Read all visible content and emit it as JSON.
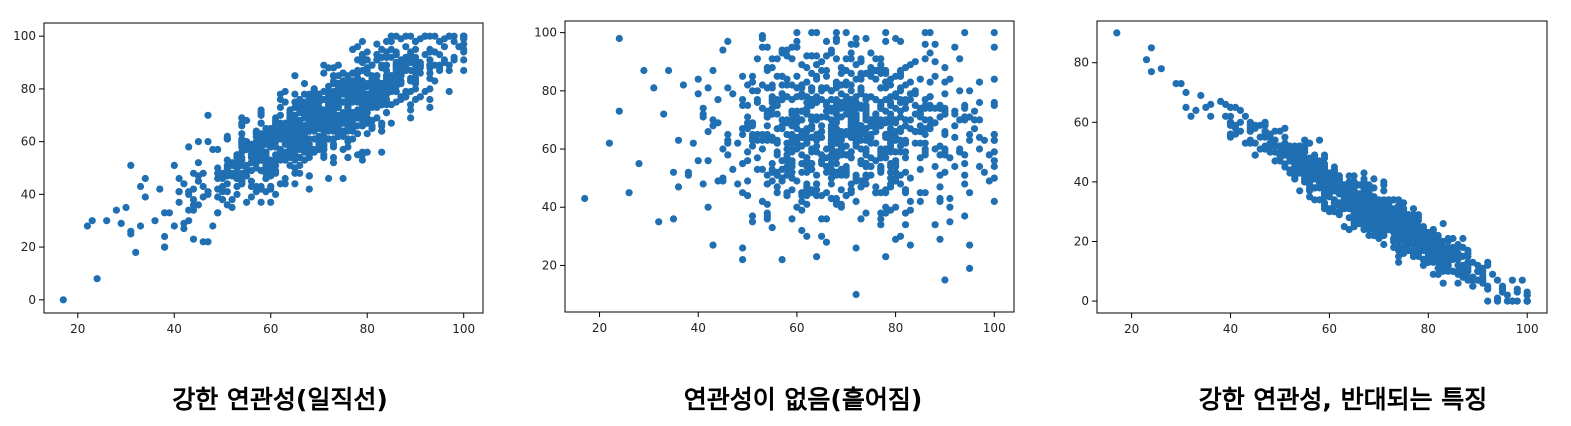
{
  "colors": {
    "marker": "#1f6fb2",
    "axes": "#000000",
    "background": "#ffffff"
  },
  "chart_data": [
    {
      "type": "scatter",
      "caption": "강한 연관성(일직선)",
      "xlim": [
        13,
        104
      ],
      "ylim": [
        -5,
        105
      ],
      "xticks": [
        20,
        40,
        60,
        80,
        100
      ],
      "yticks": [
        0,
        20,
        40,
        60,
        80,
        100
      ],
      "trend": {
        "kind": "linear",
        "slope": 1.0,
        "intercept": -2,
        "noise": 8,
        "n": 1000,
        "x_center": 72,
        "x_spread": 13,
        "x_min": 20,
        "x_max": 100,
        "y_min": 15,
        "y_max": 100
      },
      "points": [
        [
          17,
          0
        ],
        [
          24,
          8
        ],
        [
          22,
          28
        ],
        [
          23,
          30
        ],
        [
          26,
          30
        ],
        [
          28,
          34
        ],
        [
          30,
          35
        ],
        [
          29,
          29
        ],
        [
          31,
          51
        ],
        [
          34,
          46
        ],
        [
          32,
          18
        ],
        [
          31,
          26
        ],
        [
          33,
          28
        ],
        [
          36,
          30
        ],
        [
          38,
          20
        ],
        [
          38,
          24
        ],
        [
          40,
          28
        ],
        [
          44,
          23
        ],
        [
          41,
          46
        ],
        [
          43,
          58
        ],
        [
          45,
          60
        ],
        [
          47,
          70
        ],
        [
          44,
          34
        ]
      ]
    },
    {
      "type": "scatter",
      "caption": "연관성이 없음(흩어짐)",
      "xlim": [
        13,
        104
      ],
      "ylim": [
        4,
        104
      ],
      "xticks": [
        20,
        40,
        60,
        80,
        100
      ],
      "yticks": [
        20,
        40,
        60,
        80,
        100
      ],
      "trend": {
        "kind": "none",
        "x_center": 70,
        "x_spread": 13,
        "y_center": 66,
        "y_spread": 15,
        "n": 900,
        "x_min": 35,
        "x_max": 100,
        "y_min": 20,
        "y_max": 100
      },
      "points": [
        [
          17,
          43
        ],
        [
          22,
          62
        ],
        [
          24,
          98
        ],
        [
          24,
          73
        ],
        [
          26,
          45
        ],
        [
          28,
          55
        ],
        [
          29,
          87
        ],
        [
          31,
          81
        ],
        [
          32,
          35
        ],
        [
          33,
          72
        ],
        [
          34,
          87
        ],
        [
          36,
          47
        ],
        [
          36,
          63
        ],
        [
          38,
          51
        ],
        [
          43,
          27
        ],
        [
          57,
          22
        ],
        [
          62,
          30
        ],
        [
          66,
          28
        ],
        [
          72,
          10
        ],
        [
          78,
          23
        ],
        [
          83,
          27
        ],
        [
          88,
          34
        ],
        [
          90,
          15
        ],
        [
          95,
          19
        ],
        [
          95,
          27
        ],
        [
          100,
          100
        ],
        [
          100,
          50
        ],
        [
          100,
          54
        ]
      ]
    },
    {
      "type": "scatter",
      "caption": "강한 연관성, 반대되는 특징",
      "xlim": [
        13,
        104
      ],
      "ylim": [
        -4,
        94
      ],
      "xticks": [
        20,
        40,
        60,
        80,
        100
      ],
      "yticks": [
        0,
        20,
        40,
        60,
        80
      ],
      "trend": {
        "kind": "linear",
        "slope": -1.07,
        "intercept": 104,
        "noise": 4,
        "n": 1000,
        "x_center": 68,
        "x_spread": 13,
        "x_min": 40,
        "x_max": 100,
        "y_min": 0,
        "y_max": 65
      },
      "points": [
        [
          17,
          90
        ],
        [
          23,
          81
        ],
        [
          24,
          85
        ],
        [
          24,
          77
        ],
        [
          26,
          78
        ],
        [
          29,
          73
        ],
        [
          30,
          73
        ],
        [
          31,
          70
        ],
        [
          31,
          65
        ],
        [
          32,
          62
        ],
        [
          33,
          64
        ],
        [
          35,
          65
        ],
        [
          34,
          69
        ],
        [
          36,
          62
        ],
        [
          36,
          66
        ],
        [
          38,
          67
        ],
        [
          39,
          62
        ],
        [
          39,
          66
        ],
        [
          42,
          64
        ],
        [
          41,
          59
        ],
        [
          100,
          0
        ],
        [
          100,
          2
        ],
        [
          99,
          7
        ],
        [
          98,
          4
        ]
      ]
    }
  ]
}
